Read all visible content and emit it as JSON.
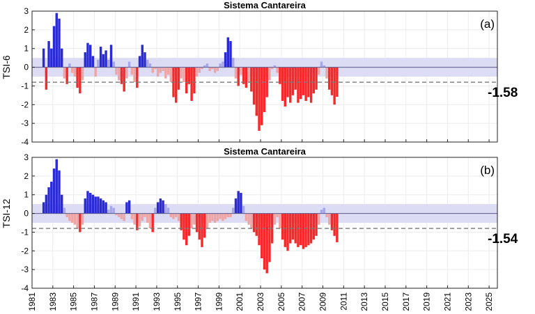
{
  "chart_data": [
    {
      "type": "bar",
      "title": "Sistema Cantareira",
      "ylabel": "TSI-6",
      "panel_label": "(a)",
      "last_value_label": "-1.58",
      "ylim": [
        -4,
        3
      ],
      "yticks": [
        -4,
        -3,
        -2,
        -1,
        0,
        1,
        2,
        3
      ],
      "xlim": [
        1981,
        2025.8
      ],
      "neutral_band": [
        -0.5,
        0.5
      ],
      "threshold": -0.8,
      "grid": true,
      "colors": {
        "strong_positive": "#2b2bd6",
        "weak_positive": "#a7a7e8",
        "weak_negative": "#eea5a5",
        "strong_negative": "#f42a2a",
        "band": "#dcdcf5",
        "threshold": "#777777"
      },
      "series": [
        {
          "x_start": 1982.0,
          "step": 0.25,
          "values": [
            1.0,
            -1.2,
            1.4,
            1.0,
            2.2,
            2.9,
            2.6,
            1.0,
            -0.6,
            -0.9,
            0.2,
            -0.3,
            -0.5,
            -1.1,
            -1.4,
            -0.7,
            0.8,
            1.3,
            1.2,
            0.6,
            -0.5,
            0.4,
            1.1,
            0.7,
            0.9,
            0.4,
            1.2,
            0.3,
            -0.4,
            -0.7,
            -0.9,
            -1.3,
            -0.6,
            0.3,
            -0.4,
            -0.8,
            -1.1,
            0.6,
            1.2,
            0.8,
            0.4,
            0.2,
            -0.3,
            -0.1,
            -0.5,
            -0.3,
            -0.2,
            -0.6,
            -0.4,
            -0.8,
            -1.6,
            -1.9,
            -1.2,
            -0.6,
            -0.8,
            -1.4,
            -0.9,
            -1.8,
            -1.4,
            -0.5,
            -0.3,
            -0.1,
            0.1,
            0.2,
            -0.2,
            -0.1,
            -0.3,
            -0.2,
            0.2,
            0.3,
            0.8,
            1.6,
            1.4,
            0.5,
            -0.6,
            -1.0,
            -0.4,
            -0.9,
            -1.1,
            -0.8,
            -1.3,
            -2.0,
            -2.6,
            -3.4,
            -3.1,
            -2.4,
            -1.6,
            -0.7,
            -0.1,
            0.1,
            -0.3,
            -0.9,
            -1.8,
            -2.1,
            -1.6,
            -1.9,
            -1.5,
            -1.2,
            -1.9,
            -1.7,
            -1.5,
            -1.8,
            -1.6,
            -1.9,
            -1.4,
            -1.2,
            -0.4,
            0.3,
            0.1,
            -0.6,
            -1.2,
            -1.5,
            -2.0,
            -1.58
          ]
        }
      ]
    },
    {
      "type": "bar",
      "title": "Sistema Cantareira",
      "ylabel": "TSI-12",
      "panel_label": "(b)",
      "last_value_label": "-1.54",
      "ylim": [
        -4,
        3
      ],
      "yticks": [
        -4,
        -3,
        -2,
        -1,
        0,
        1,
        2,
        3
      ],
      "xlim": [
        1981,
        2025.8
      ],
      "neutral_band": [
        -0.5,
        0.5
      ],
      "threshold": -0.8,
      "grid": true,
      "colors": {
        "strong_positive": "#2b2bd6",
        "weak_positive": "#a7a7e8",
        "weak_negative": "#eea5a5",
        "strong_negative": "#f42a2a",
        "band": "#dcdcf5",
        "threshold": "#777777"
      },
      "series": [
        {
          "x_start": 1982.0,
          "step": 0.25,
          "values": [
            0.6,
            1.0,
            1.4,
            1.7,
            2.4,
            2.9,
            2.3,
            1.0,
            0.3,
            -0.2,
            -0.4,
            -0.5,
            -0.6,
            -0.8,
            -1.0,
            -0.6,
            0.8,
            1.2,
            1.1,
            1.0,
            0.9,
            0.9,
            0.8,
            0.7,
            0.6,
            0.2,
            0.4,
            0.3,
            -0.1,
            -0.2,
            -0.3,
            -0.4,
            0.6,
            0.7,
            -0.3,
            -0.6,
            -0.9,
            -0.7,
            -0.4,
            -0.2,
            -0.5,
            -0.8,
            -1.0,
            0.3,
            0.6,
            0.8,
            0.7,
            0.5,
            0.3,
            -0.2,
            -0.3,
            -0.2,
            -0.4,
            -0.9,
            -1.4,
            -1.7,
            -1.2,
            -0.8,
            -0.6,
            -1.0,
            -1.4,
            -1.8,
            -1.3,
            -0.8,
            -0.5,
            -0.4,
            -0.5,
            -0.4,
            -0.3,
            -0.4,
            -0.3,
            -0.2,
            -0.2,
            0.3,
            0.8,
            1.2,
            1.1,
            0.4,
            -0.4,
            -0.6,
            -0.8,
            -1.0,
            -1.2,
            -1.7,
            -2.4,
            -3.0,
            -3.2,
            -2.6,
            -1.6,
            -0.6,
            -0.2,
            -0.8,
            -1.4,
            -1.8,
            -2.0,
            -1.6,
            -1.4,
            -1.6,
            -1.8,
            -1.7,
            -1.9,
            -1.8,
            -1.7,
            -1.6,
            -1.4,
            -1.2,
            -0.6,
            0.2,
            0.3,
            -0.2,
            -0.6,
            -0.9,
            -1.2,
            -1.54
          ]
        }
      ]
    }
  ],
  "x_ticks": [
    "1981",
    "1983",
    "1985",
    "1987",
    "1989",
    "1991",
    "1993",
    "1995",
    "1997",
    "1999",
    "2001",
    "2003",
    "2005",
    "2007",
    "2009",
    "2011",
    "2013",
    "2015",
    "2017",
    "2019",
    "2021",
    "2023",
    "2025"
  ]
}
